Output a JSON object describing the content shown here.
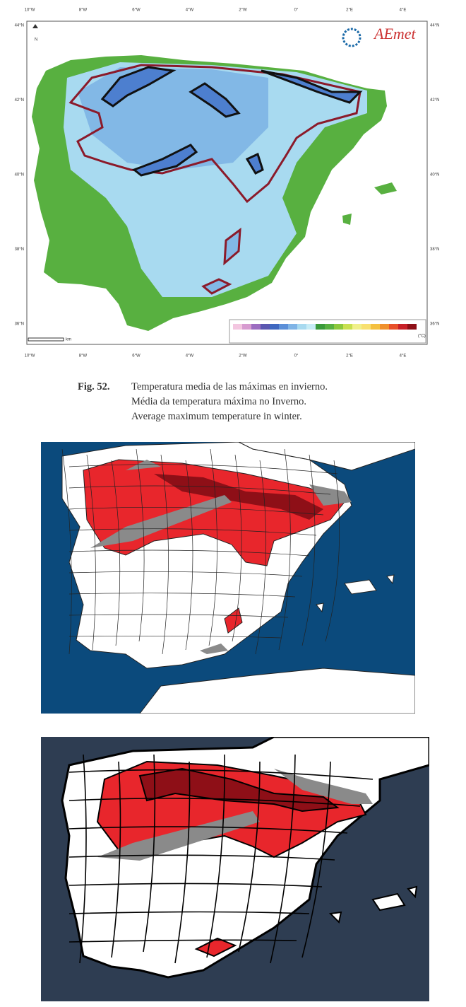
{
  "figure1": {
    "lon_labels": [
      "10°W",
      "8°W",
      "6°W",
      "4°W",
      "2°W",
      "0°",
      "2°E",
      "4°E"
    ],
    "lat_labels": [
      "44°N",
      "42°N",
      "40°N",
      "38°N",
      "36°N"
    ],
    "logo": "AEmet",
    "north": "N",
    "scale_unit": "km",
    "legend_unit": "(°C)"
  },
  "caption": {
    "label": "Fig. 52.",
    "lines": [
      "Temperatura media de las máximas en invierno.",
      "Média da temperatura máxima no Inverno.",
      "Average maximum temperature in winter."
    ]
  }
}
